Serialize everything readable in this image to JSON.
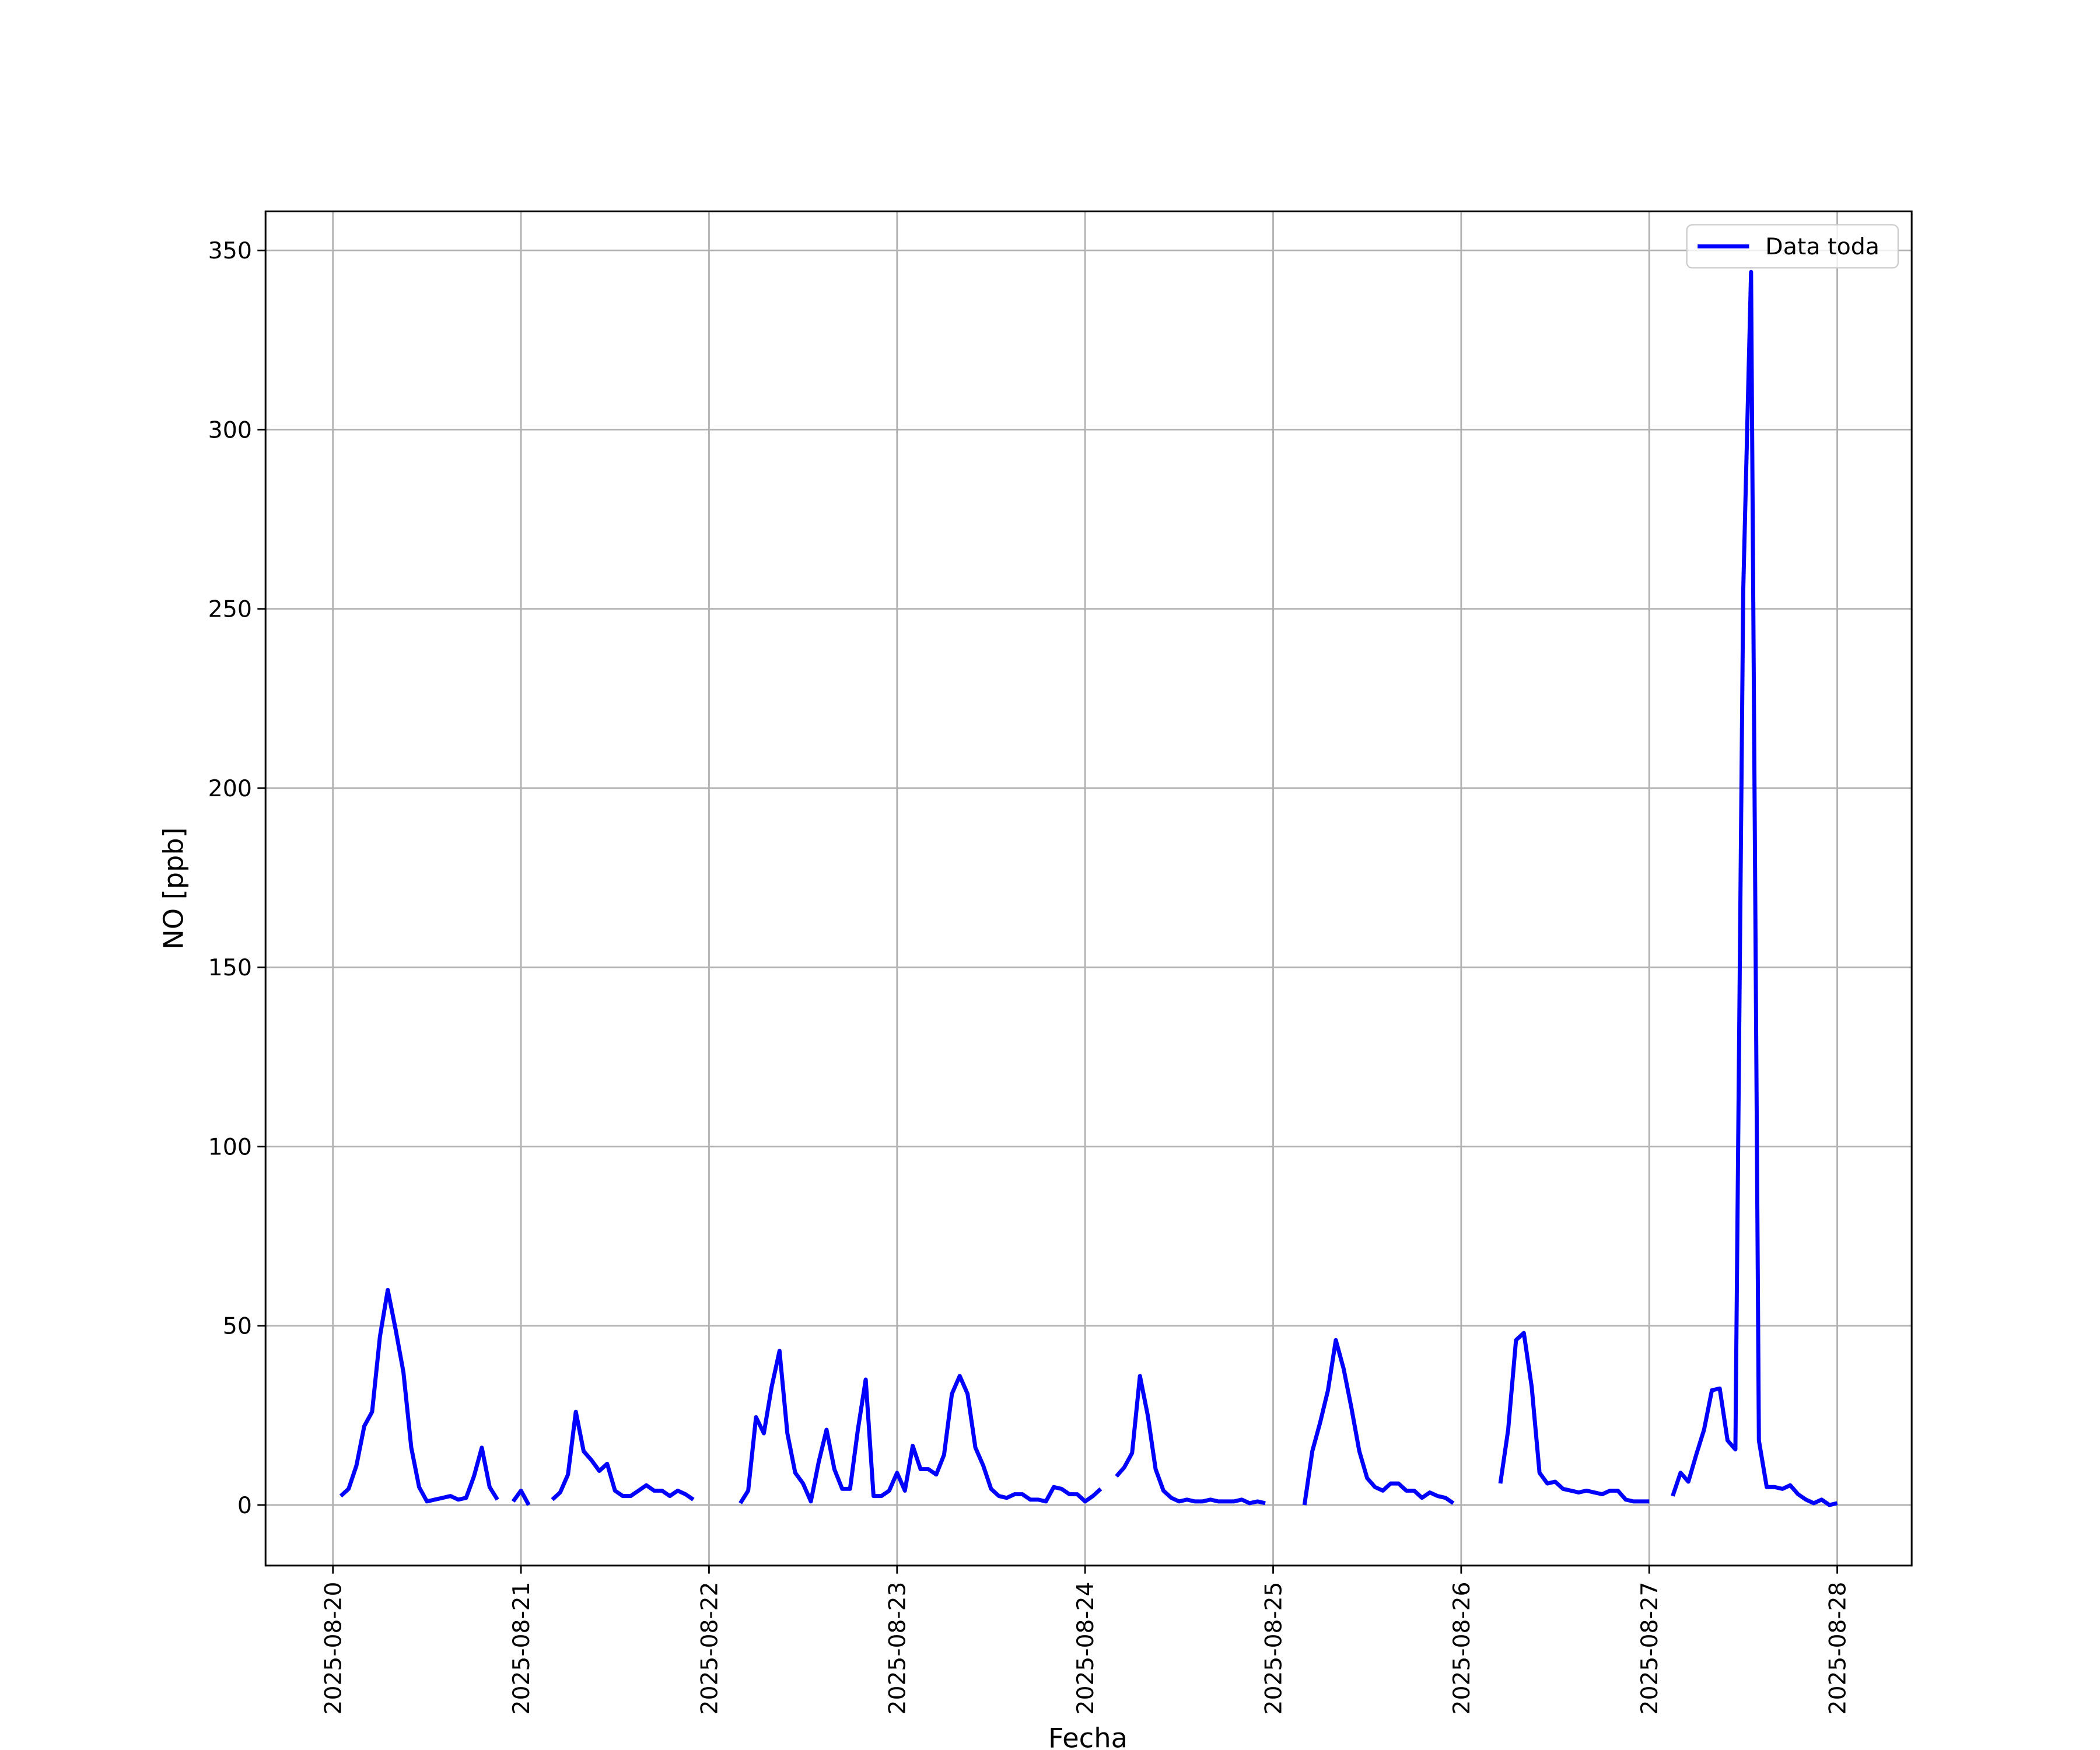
{
  "chart_data": {
    "type": "line",
    "xlabel": "Fecha",
    "ylabel": "NO [ppb]",
    "x": [
      1,
      2,
      3,
      4,
      5,
      6,
      7,
      8,
      9,
      10,
      11,
      12,
      13,
      14,
      15,
      16,
      17,
      18,
      19,
      20,
      21,
      22,
      23,
      24,
      25,
      26,
      28,
      29,
      30,
      31,
      32,
      33,
      34,
      35,
      36,
      37,
      38,
      39,
      40,
      41,
      42,
      43,
      44,
      45,
      46,
      47,
      52,
      53,
      54,
      55,
      56,
      57,
      58,
      59,
      60,
      61,
      62,
      63,
      64,
      65,
      66,
      67,
      68,
      69,
      70,
      71,
      72,
      73,
      74,
      75,
      76,
      77,
      78,
      79,
      80,
      81,
      82,
      83,
      84,
      85,
      86,
      87,
      88,
      89,
      90,
      91,
      92,
      93,
      94,
      95,
      96,
      97,
      98,
      99,
      100,
      101,
      102,
      103,
      104,
      105,
      106,
      107,
      108,
      109,
      110,
      111,
      112,
      113,
      114,
      115,
      116,
      117,
      118,
      119,
      120,
      124,
      125,
      126,
      127,
      128,
      129,
      130,
      131,
      132,
      133,
      134,
      135,
      136,
      137,
      138,
      139,
      140,
      141,
      142,
      143,
      144,
      149,
      150,
      151,
      152,
      153,
      154,
      155,
      156,
      157,
      158,
      159,
      160,
      161,
      162,
      163,
      164,
      165,
      166,
      167,
      168,
      169,
      171,
      172,
      173,
      174,
      175,
      176,
      177,
      178,
      179,
      180,
      181,
      182,
      183,
      184,
      185,
      186,
      187,
      188,
      189,
      190,
      191,
      192
    ],
    "series": [
      {
        "name": "Data toda",
        "color": "#0000ff",
        "values": [
          2.5,
          4.5,
          11,
          22,
          26,
          47,
          60,
          49,
          37,
          16,
          5,
          1,
          1.5,
          2,
          2.5,
          1.5,
          2,
          8,
          16,
          5,
          1.5,
          null,
          1,
          4,
          0,
          null,
          1.5,
          3.5,
          8.5,
          26,
          15,
          12.5,
          9.5,
          11.5,
          4,
          2.5,
          2.5,
          4,
          5.5,
          4,
          4,
          2.5,
          4,
          3,
          1.5,
          null,
          0.5,
          4,
          24.5,
          20,
          33,
          43,
          20,
          9,
          6,
          1,
          12,
          21,
          10,
          4.5,
          4.5,
          21,
          35,
          2.5,
          2.5,
          4,
          9,
          4,
          16.5,
          10,
          10,
          8.5,
          14,
          31,
          36,
          31,
          16,
          11,
          4.5,
          2.5,
          2,
          3,
          3,
          1.5,
          1.5,
          1,
          5,
          4.5,
          3,
          3,
          1,
          2.5,
          4.5,
          null,
          8,
          10.5,
          14.5,
          36,
          25,
          10,
          4,
          2,
          1,
          1.5,
          1,
          1,
          1.5,
          1,
          1,
          1,
          1.5,
          0.5,
          1,
          0.5,
          null,
          0,
          15,
          23,
          32,
          46,
          38,
          27,
          15,
          7.5,
          5,
          4,
          6,
          6,
          4,
          4,
          2,
          3.5,
          2.5,
          2,
          0.5,
          null,
          6,
          21,
          46,
          48,
          33,
          9,
          6,
          6.5,
          4.5,
          4,
          3.5,
          4,
          3.5,
          3,
          4,
          4,
          1.5,
          1,
          1,
          1,
          null,
          2.5,
          9,
          6.5,
          14,
          21,
          32,
          32.5,
          18,
          15.5,
          255,
          344,
          18,
          5,
          5,
          4.5,
          5.5,
          3,
          1.5,
          0.5,
          1.5,
          0,
          0.5
        ]
      }
    ],
    "xlim": [
      -8.6,
      201.5
    ],
    "xticks": [
      {
        "value": 0,
        "label": "2025-08-20"
      },
      {
        "value": 24,
        "label": "2025-08-21"
      },
      {
        "value": 48,
        "label": "2025-08-22"
      },
      {
        "value": 72,
        "label": "2025-08-23"
      },
      {
        "value": 96,
        "label": "2025-08-24"
      },
      {
        "value": 120,
        "label": "2025-08-25"
      },
      {
        "value": 144,
        "label": "2025-08-26"
      },
      {
        "value": 168,
        "label": "2025-08-27"
      },
      {
        "value": 192,
        "label": "2025-08-28"
      }
    ],
    "ylim": [
      -16.9,
      360.9
    ],
    "yticks": [
      0,
      50,
      100,
      150,
      200,
      250,
      300,
      350
    ],
    "grid": true,
    "legend": "upper right"
  }
}
